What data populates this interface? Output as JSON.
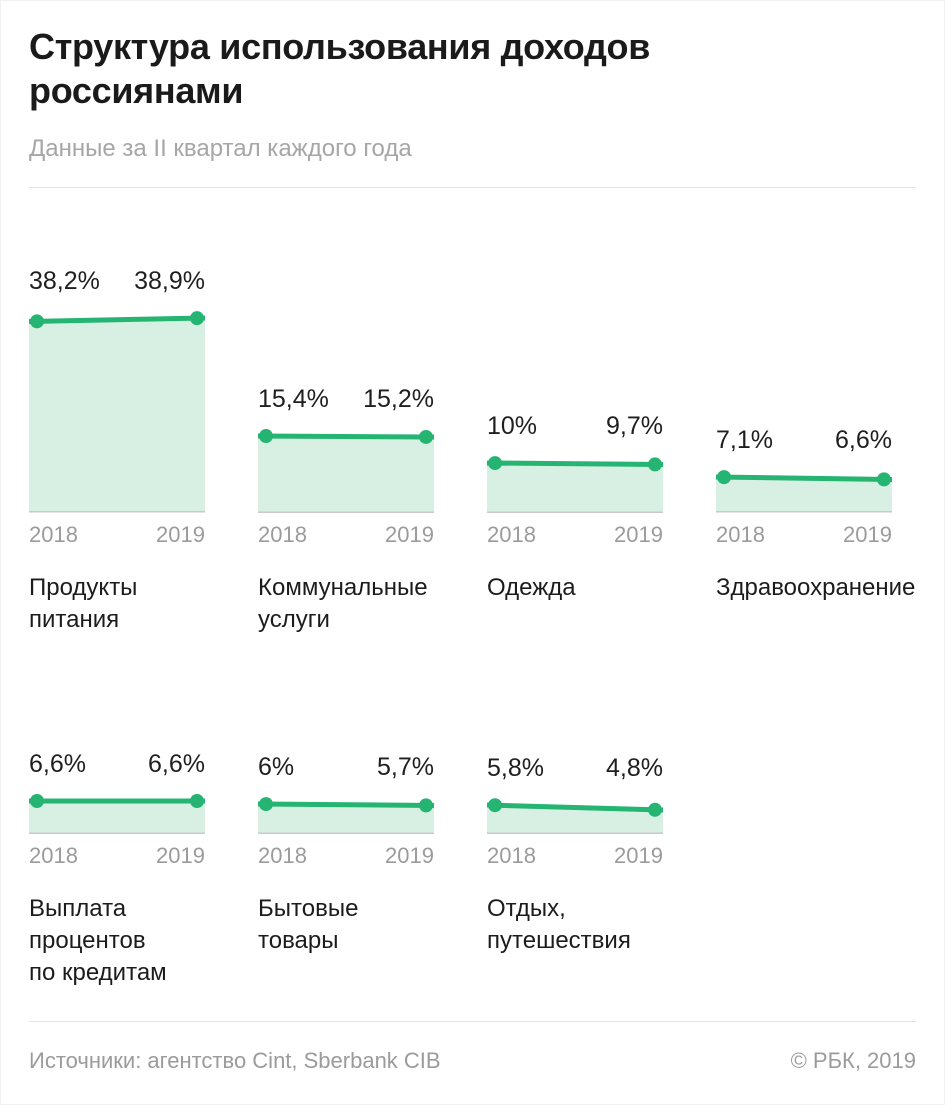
{
  "header": {
    "title": "Структура использования доходов\nроссиянами",
    "subtitle": "Данные за II квартал каждого года"
  },
  "footer": {
    "sources": "Источники: агентство Cint, Sberbank CIB",
    "copyright": "© РБК, 2019"
  },
  "chart_data": {
    "type": "area",
    "title": "Структура использования доходов россиянами",
    "subtitle": "Данные за II квартал каждого года",
    "x": [
      "2018",
      "2019"
    ],
    "unit": "%",
    "rows": [
      4,
      3
    ],
    "colors": {
      "line": "#25b472",
      "fill": "#d8f0e3",
      "baseline": "#c9c9c9"
    },
    "series": [
      {
        "name": "Продукты\nпитания",
        "values": [
          38.2,
          38.9
        ],
        "labels": [
          "38,2%",
          "38,9%"
        ]
      },
      {
        "name": "Коммунальные\nуслуги",
        "values": [
          15.4,
          15.2
        ],
        "labels": [
          "15,4%",
          "15,2%"
        ]
      },
      {
        "name": "Одежда",
        "values": [
          10,
          9.7
        ],
        "labels": [
          "10%",
          "9,7%"
        ]
      },
      {
        "name": "Здравоохранение",
        "values": [
          7.1,
          6.6
        ],
        "labels": [
          "7,1%",
          "6,6%"
        ]
      },
      {
        "name": "Выплата\nпроцентов\nпо кредитам",
        "values": [
          6.6,
          6.6
        ],
        "labels": [
          "6,6%",
          "6,6%"
        ]
      },
      {
        "name": "Бытовые\nтовары",
        "values": [
          6,
          5.7
        ],
        "labels": [
          "6%",
          "5,7%"
        ]
      },
      {
        "name": "Отдых,\nпутешествия",
        "values": [
          5.8,
          4.8
        ],
        "labels": [
          "5,8%",
          "4,8%"
        ]
      }
    ]
  }
}
